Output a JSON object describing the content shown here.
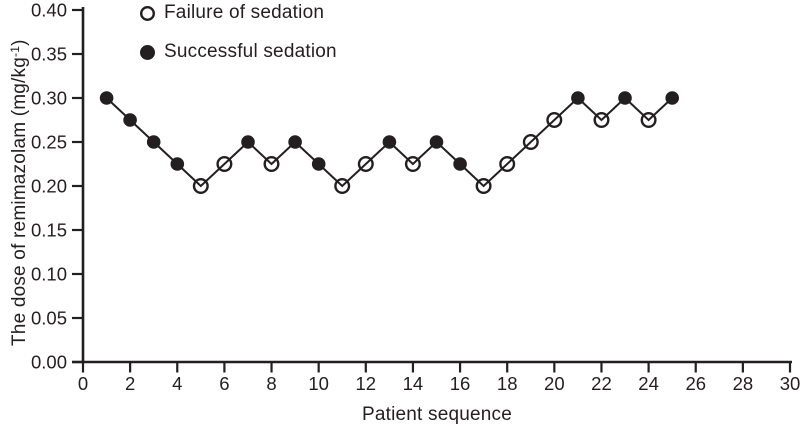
{
  "figure": {
    "colors": {
      "ink": "#231f20",
      "background": "#ffffff"
    },
    "legend": [
      {
        "label": "Failure of sedation",
        "marker": "open-circle"
      },
      {
        "label": "Successful sedation",
        "marker": "filled-circle"
      }
    ]
  },
  "chart_data": {
    "type": "line",
    "title": "",
    "xlabel": "Patient sequence",
    "ylabel_main": "The dose of remimazolam (mg/kg",
    "ylabel_sup": "-1",
    "ylabel_close": ")",
    "xlim": [
      0,
      30
    ],
    "ylim": [
      0,
      0.4
    ],
    "grid": false,
    "legend_position": "top-left-inside",
    "x_ticks": [
      0,
      2,
      4,
      6,
      8,
      10,
      12,
      14,
      16,
      18,
      20,
      22,
      24,
      26,
      28,
      30
    ],
    "y_ticks": [
      {
        "v": 0.0,
        "label": "0.00"
      },
      {
        "v": 0.05,
        "label": "0.05"
      },
      {
        "v": 0.1,
        "label": "0.10"
      },
      {
        "v": 0.15,
        "label": "0.15"
      },
      {
        "v": 0.2,
        "label": "0.20"
      },
      {
        "v": 0.25,
        "label": "0.25"
      },
      {
        "v": 0.3,
        "label": "0.30"
      },
      {
        "v": 0.35,
        "label": "0.35"
      },
      {
        "v": 0.4,
        "label": "0.40"
      }
    ],
    "points": [
      {
        "patient": 1,
        "dose": 0.3,
        "outcome": "success"
      },
      {
        "patient": 2,
        "dose": 0.275,
        "outcome": "success"
      },
      {
        "patient": 3,
        "dose": 0.25,
        "outcome": "success"
      },
      {
        "patient": 4,
        "dose": 0.225,
        "outcome": "success"
      },
      {
        "patient": 5,
        "dose": 0.2,
        "outcome": "failure"
      },
      {
        "patient": 6,
        "dose": 0.225,
        "outcome": "failure"
      },
      {
        "patient": 7,
        "dose": 0.25,
        "outcome": "success"
      },
      {
        "patient": 8,
        "dose": 0.225,
        "outcome": "failure"
      },
      {
        "patient": 9,
        "dose": 0.25,
        "outcome": "success"
      },
      {
        "patient": 10,
        "dose": 0.225,
        "outcome": "success"
      },
      {
        "patient": 11,
        "dose": 0.2,
        "outcome": "failure"
      },
      {
        "patient": 12,
        "dose": 0.225,
        "outcome": "failure"
      },
      {
        "patient": 13,
        "dose": 0.25,
        "outcome": "success"
      },
      {
        "patient": 14,
        "dose": 0.225,
        "outcome": "failure"
      },
      {
        "patient": 15,
        "dose": 0.25,
        "outcome": "success"
      },
      {
        "patient": 16,
        "dose": 0.225,
        "outcome": "success"
      },
      {
        "patient": 17,
        "dose": 0.2,
        "outcome": "failure"
      },
      {
        "patient": 18,
        "dose": 0.225,
        "outcome": "failure"
      },
      {
        "patient": 19,
        "dose": 0.25,
        "outcome": "failure"
      },
      {
        "patient": 20,
        "dose": 0.275,
        "outcome": "failure"
      },
      {
        "patient": 21,
        "dose": 0.3,
        "outcome": "success"
      },
      {
        "patient": 22,
        "dose": 0.275,
        "outcome": "failure"
      },
      {
        "patient": 23,
        "dose": 0.3,
        "outcome": "success"
      },
      {
        "patient": 24,
        "dose": 0.275,
        "outcome": "failure"
      },
      {
        "patient": 25,
        "dose": 0.3,
        "outcome": "success"
      }
    ]
  }
}
